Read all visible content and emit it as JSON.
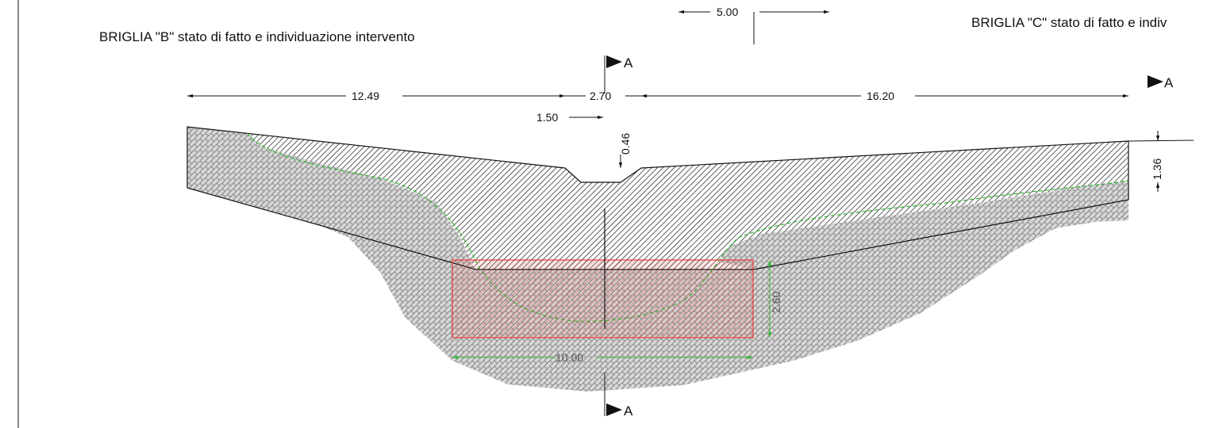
{
  "titles": {
    "briglia_b": "BRIGLIA \"B\" stato di fatto e individuazione intervento",
    "briglia_c": "BRIGLIA \"C\" stato di fatto e indiv"
  },
  "dimensions": {
    "top_5_00": "5.00",
    "left_12_49": "12.49",
    "mid_2_70": "2.70",
    "right_16_20": "16.20",
    "notch_1_50": "1.50",
    "notch_0_46": "0.46",
    "right_1_36": "1.36",
    "green_2_60": "2.60",
    "green_10_00": "10.00"
  },
  "section_markers": {
    "top": "A",
    "bottom": "A",
    "right": "A"
  },
  "colors": {
    "line": "#111111",
    "hatch_dark": "#1a1a1a",
    "hatch_gray": "#8a8a8a",
    "intervention_red": "#e53935",
    "green_dim": "#2fb82f"
  }
}
